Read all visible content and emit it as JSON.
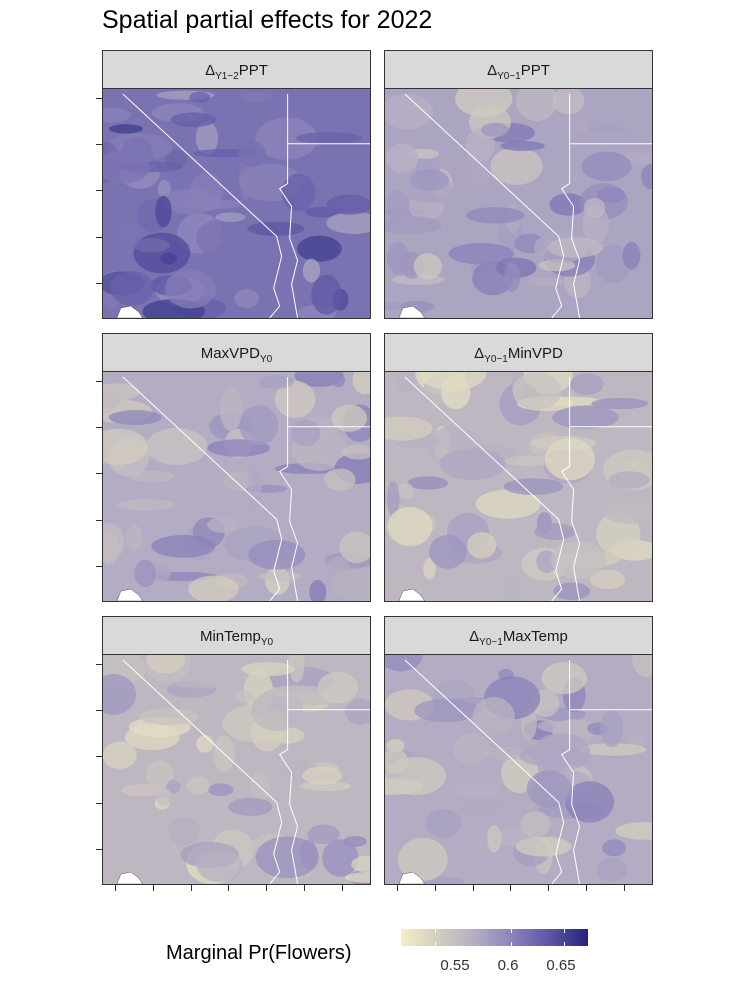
{
  "chart_data": {
    "type": "heatmap",
    "title": "Spatial partial effects for 2022",
    "panels": [
      {
        "label_base": "Δ",
        "label_sub": "Y1−2",
        "label_rest": "PPT",
        "mean_effect": 0.625
      },
      {
        "label_base": "Δ",
        "label_sub": "Y0−1",
        "label_rest": "PPT",
        "mean_effect": 0.59
      },
      {
        "label_base": "MaxVPD",
        "label_sub": "Y0",
        "label_rest": "",
        "mean_effect": 0.585
      },
      {
        "label_base": "Δ",
        "label_sub": "Y0−1",
        "label_rest": "MinVPD",
        "mean_effect": 0.575
      },
      {
        "label_base": "MinTemp",
        "label_sub": "Y0",
        "label_rest": "",
        "mean_effect": 0.575
      },
      {
        "label_base": "Δ",
        "label_sub": "Y0−1",
        "label_rest": "MaxTemp",
        "mean_effect": 0.585
      }
    ],
    "legend": {
      "title": "Marginal Pr(Flowers)",
      "ticks": [
        "0.55",
        "0.6",
        "0.65"
      ],
      "range": [
        0.525,
        0.675
      ],
      "colors": [
        "#f3efc5",
        "#b7b0c3",
        "#25237a"
      ]
    },
    "grid": false
  }
}
